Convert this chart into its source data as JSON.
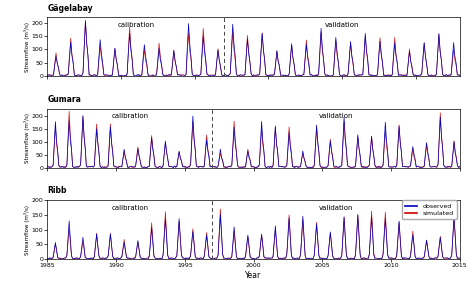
{
  "subplots": [
    {
      "label": "Gägelabay",
      "year_start": 1985,
      "year_end": 2013,
      "split_year": 1997,
      "ylim": [
        0,
        220
      ],
      "yticks": [
        0,
        50,
        100,
        150,
        200
      ],
      "xticks": [
        1985,
        1990,
        1995,
        2000,
        2005,
        2010
      ]
    },
    {
      "label": "Gumara",
      "year_start": 1985,
      "year_end": 2015,
      "split_year": 1997,
      "ylim": [
        0,
        230
      ],
      "yticks": [
        0,
        50,
        100,
        150,
        200
      ],
      "xticks": [
        1985,
        1990,
        1995,
        2000,
        2005,
        2010,
        2015
      ]
    },
    {
      "label": "Ribb",
      "year_start": 1985,
      "year_end": 2015,
      "split_year": 1997,
      "ylim": [
        0,
        200
      ],
      "yticks": [
        0,
        50,
        100,
        150,
        200
      ],
      "xticks": [
        1985,
        1990,
        1995,
        2000,
        2005,
        2010,
        2015
      ]
    }
  ],
  "obs_color": "#0000bb",
  "sim_color": "#cc0000",
  "dashed_color": "#444444",
  "calib_label": "calibration",
  "valid_label": "validation",
  "obs_legend": "observed",
  "sim_legend": "simulated",
  "xlabel": "Year",
  "ylabel": "Streamflow (m³/s)",
  "bg_color": "#ffffff",
  "line_width": 0.5,
  "fig_width": 4.74,
  "fig_height": 2.88,
  "dpi": 100
}
